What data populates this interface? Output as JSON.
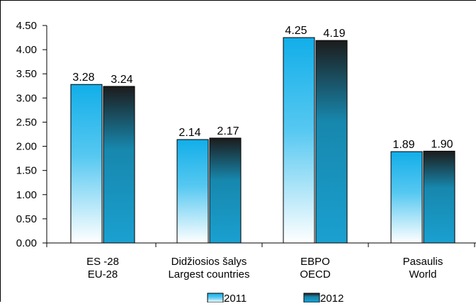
{
  "chart_data": {
    "type": "bar",
    "title": "",
    "xlabel": "",
    "ylabel": "",
    "ylim": [
      0,
      4.5
    ],
    "yticks": [
      "0.00",
      "0.50",
      "1.00",
      "1.50",
      "2.00",
      "2.50",
      "3.00",
      "3.50",
      "4.00",
      "4.50"
    ],
    "grid": false,
    "legend_position": "bottom",
    "categories": [
      {
        "line1": "ES -28",
        "line2": "EU-28"
      },
      {
        "line1": "Didžiosios šalys",
        "line2": "Largest countries"
      },
      {
        "line1": "EBPO",
        "line2": "OECD"
      },
      {
        "line1": "Pasaulis",
        "line2": "World"
      }
    ],
    "series": [
      {
        "name": "2011",
        "values": [
          3.28,
          2.14,
          4.25,
          1.89
        ],
        "labels": [
          "3.28",
          "2.14",
          "4.25",
          "1.89"
        ],
        "color": "#1ab0ea"
      },
      {
        "name": "2012",
        "values": [
          3.24,
          2.17,
          4.19,
          1.9
        ],
        "labels": [
          "3.24",
          "2.17",
          "4.19",
          "1.90"
        ],
        "color": "#118cb5"
      }
    ]
  }
}
